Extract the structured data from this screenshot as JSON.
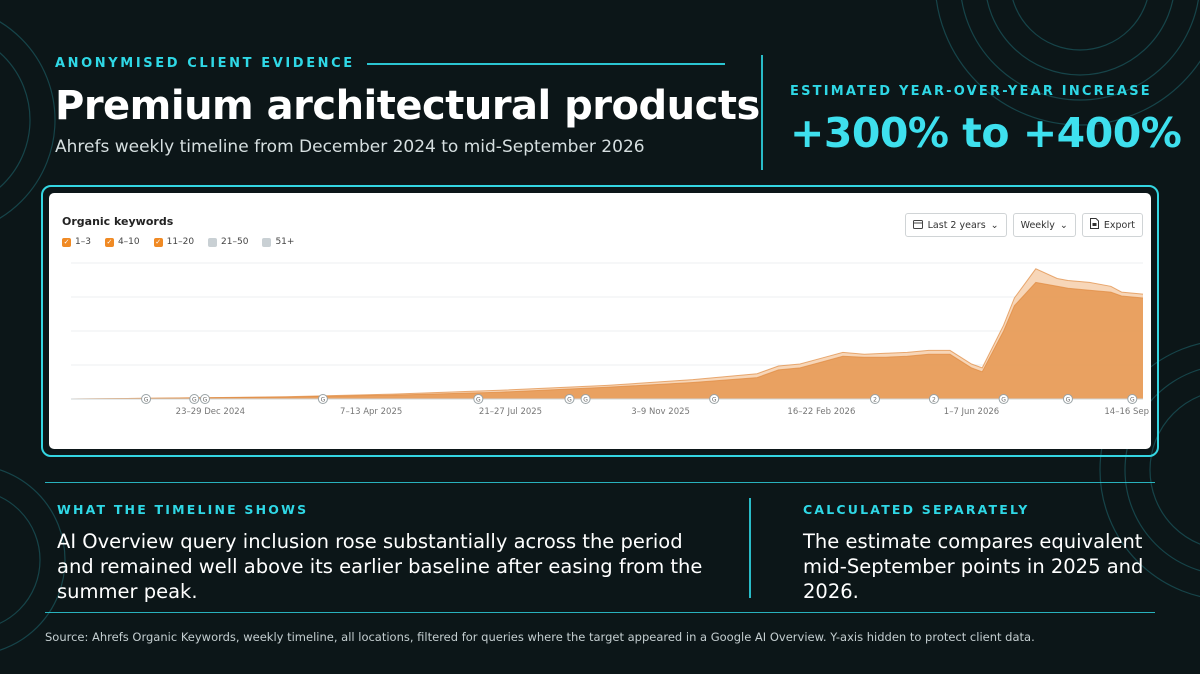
{
  "header": {
    "eyebrow": "ANONYMISED CLIENT EVIDENCE",
    "title": "Premium architectural products",
    "subtitle": "Ahrefs weekly timeline from December 2024 to mid-September 2026"
  },
  "estimate": {
    "label": "ESTIMATED YEAR-OVER-YEAR INCREASE",
    "value": "+300% to +400%"
  },
  "chart_card": {
    "title": "Organic keywords",
    "legend": [
      {
        "label": "1–3",
        "checked": true,
        "color": "#f08a24"
      },
      {
        "label": "4–10",
        "checked": true,
        "color": "#f08a24"
      },
      {
        "label": "11–20",
        "checked": true,
        "color": "#f08a24"
      },
      {
        "label": "21–50",
        "checked": false,
        "color": "#c9d0d4"
      },
      {
        "label": "51+",
        "checked": false,
        "color": "#c9d0d4"
      }
    ],
    "controls": {
      "range": "Last 2 years",
      "interval": "Weekly",
      "export": "Export"
    }
  },
  "chart_data": {
    "type": "area",
    "title": "Organic keywords",
    "x_tick_labels": [
      "23–29 Dec 2024",
      "7–13 Apr 2025",
      "21–27 Jul 2025",
      "3–9 Nov 2025",
      "16–22 Feb 2026",
      "1–7 Jun 2026",
      "14–16 Sep"
    ],
    "y_axis_hidden": true,
    "x": [
      0,
      10,
      20,
      30,
      40,
      50,
      58,
      64,
      66,
      68,
      70,
      72,
      74,
      76,
      78,
      80,
      82,
      84,
      85,
      87,
      88,
      90,
      92,
      93,
      95,
      97,
      98,
      100
    ],
    "series": [
      {
        "values": [
          0,
          0.5,
          1,
          2,
          3.5,
          6,
          8.5,
          11,
          15,
          16,
          19,
          22,
          21.5,
          21.5,
          22,
          23,
          23,
          16,
          14,
          35,
          48,
          60,
          58,
          57,
          56,
          55,
          53,
          52
        ],
        "color": "#e79b58"
      },
      {
        "values": [
          0,
          0.5,
          1.2,
          2.5,
          4.5,
          7,
          10,
          13,
          17,
          18,
          21,
          24,
          23,
          23.5,
          24,
          25,
          25,
          18,
          16,
          38,
          52,
          67,
          62,
          61,
          60,
          58,
          55,
          54
        ],
        "color": "#f6d2b0"
      }
    ],
    "annotation_markers": [
      {
        "x": 7,
        "label": "G"
      },
      {
        "x": 11.5,
        "label": "G"
      },
      {
        "x": 12.5,
        "label": "G"
      },
      {
        "x": 23.5,
        "label": "G"
      },
      {
        "x": 38,
        "label": "G"
      },
      {
        "x": 46.5,
        "label": "G"
      },
      {
        "x": 48,
        "label": "G"
      },
      {
        "x": 60,
        "label": "G"
      },
      {
        "x": 75,
        "label": "2"
      },
      {
        "x": 80.5,
        "label": "2"
      },
      {
        "x": 87,
        "label": "G"
      },
      {
        "x": 93,
        "label": "G"
      },
      {
        "x": 99,
        "label": "G"
      }
    ],
    "grid": true
  },
  "timeline": {
    "label": "WHAT THE TIMELINE SHOWS",
    "text": "AI Overview query inclusion rose substantially across the period and remained well above its earlier baseline after easing from the summer peak."
  },
  "calculated": {
    "label": "CALCULATED SEPARATELY",
    "text": "The estimate compares equivalent mid-September points in 2025 and 2026."
  },
  "source": "Source: Ahrefs Organic Keywords, weekly timeline, all locations, filtered for queries where the target appeared in a Google AI Overview. Y-axis hidden to protect client data.",
  "colors": {
    "accent": "#2fd8e6",
    "background": "#0c1618",
    "area_fill": "#f6d2b0",
    "area_line": "#e79b58"
  }
}
